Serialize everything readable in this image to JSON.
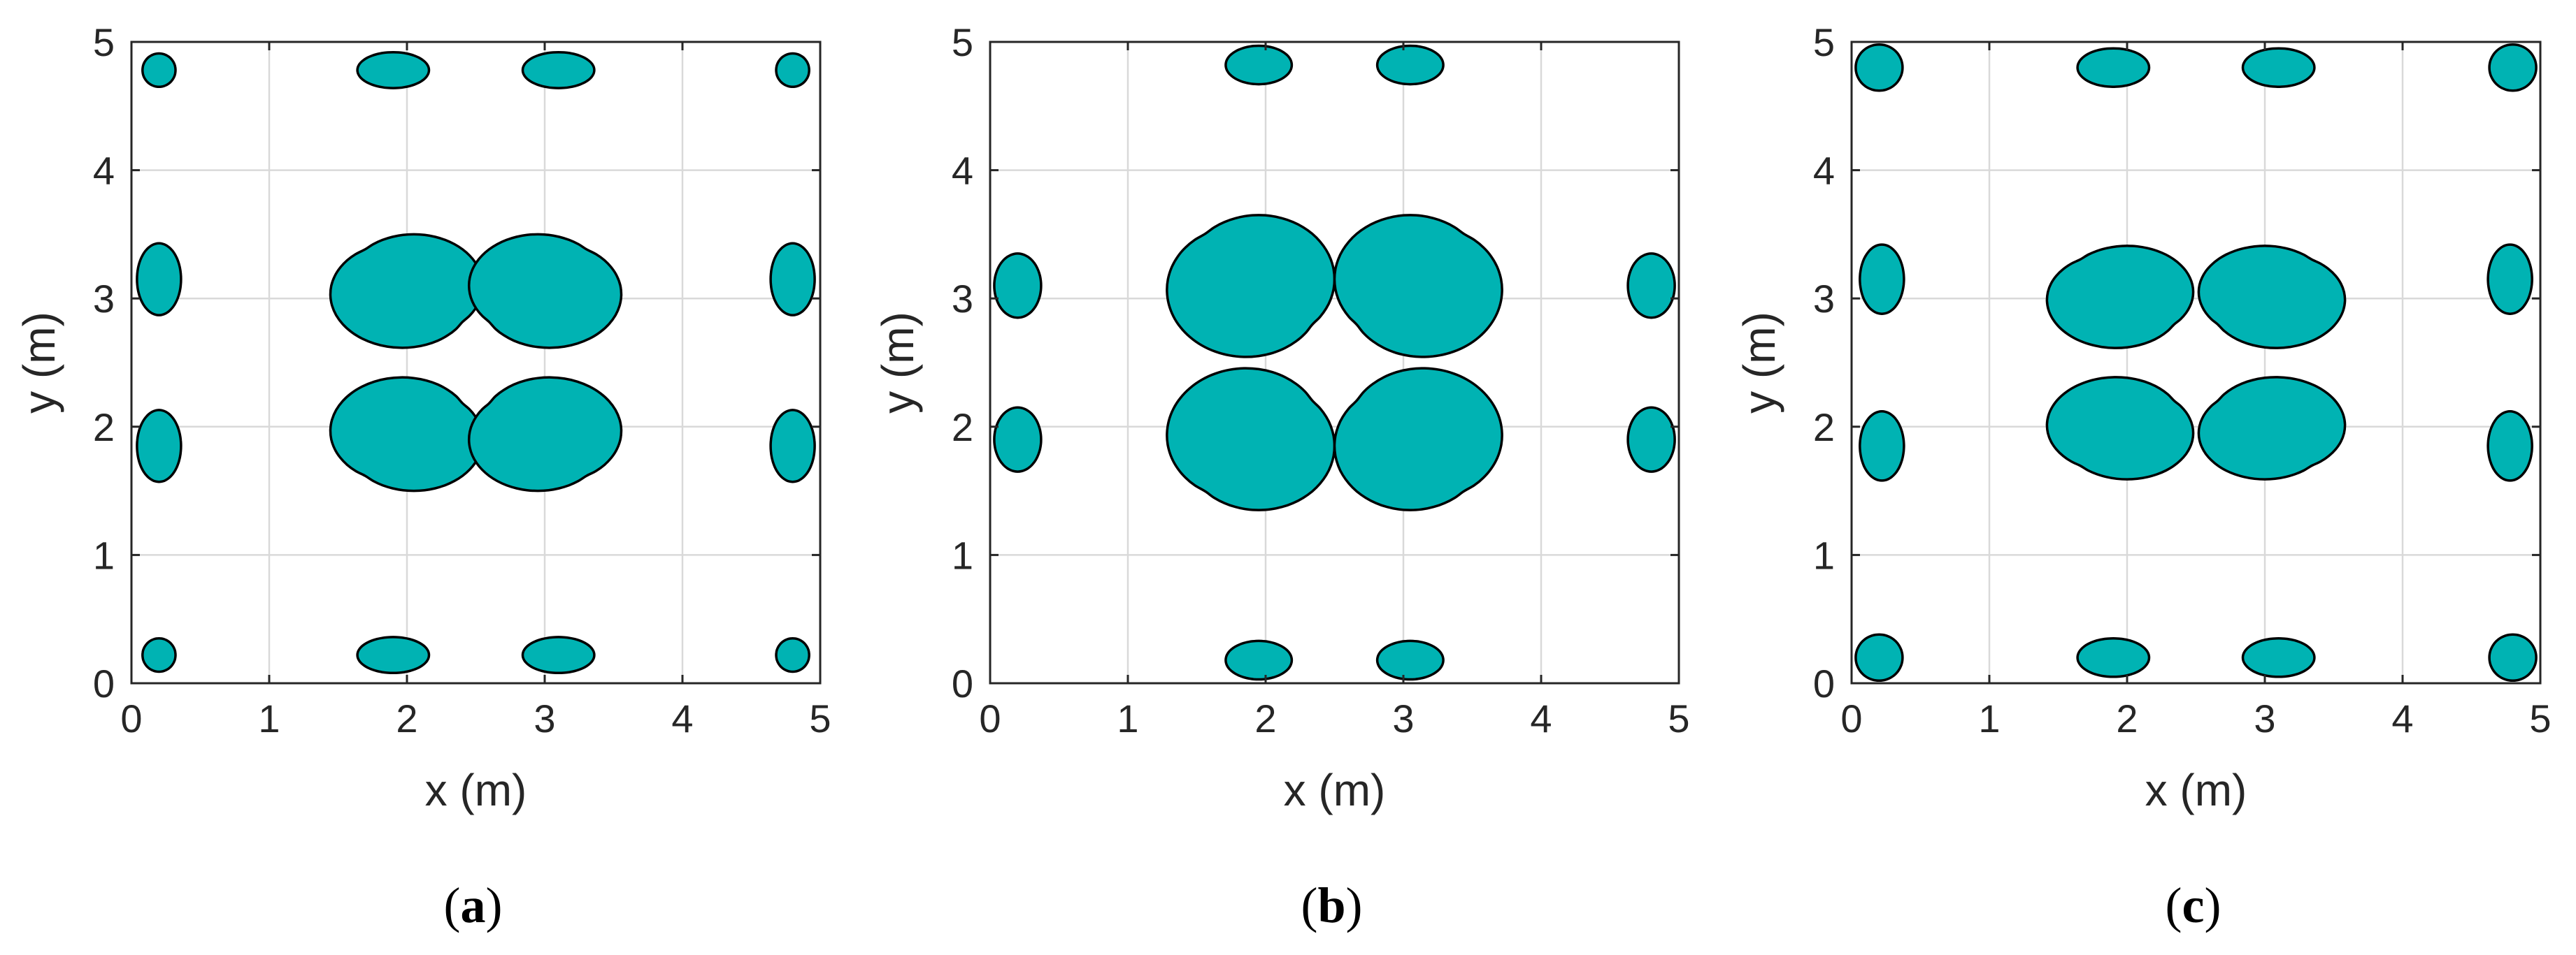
{
  "chart_data": [
    {
      "type": "contour",
      "panel_label": "a",
      "xlabel": "x (m)",
      "ylabel": "y (m)",
      "xlim": [
        0,
        5
      ],
      "ylim": [
        0,
        5
      ],
      "xticks": [
        "0",
        "1",
        "2",
        "3",
        "4",
        "5"
      ],
      "yticks": [
        "0",
        "1",
        "2",
        "3",
        "4",
        "5"
      ],
      "grid": true,
      "fill_color": "#00b3b3",
      "regions": [
        {
          "cx": 2.05,
          "cy": 3.1,
          "rx": 0.5,
          "ry": 0.4,
          "skew": "down-left"
        },
        {
          "cx": 2.95,
          "cy": 3.1,
          "rx": 0.5,
          "ry": 0.4,
          "skew": "down-right"
        },
        {
          "cx": 2.05,
          "cy": 1.9,
          "rx": 0.5,
          "ry": 0.4,
          "skew": "up-left"
        },
        {
          "cx": 2.95,
          "cy": 1.9,
          "rx": 0.5,
          "ry": 0.4,
          "skew": "up-right"
        },
        {
          "cx": 0.2,
          "cy": 3.15,
          "rx": 0.16,
          "ry": 0.28
        },
        {
          "cx": 0.2,
          "cy": 1.85,
          "rx": 0.16,
          "ry": 0.28
        },
        {
          "cx": 4.8,
          "cy": 3.15,
          "rx": 0.16,
          "ry": 0.28
        },
        {
          "cx": 4.8,
          "cy": 1.85,
          "rx": 0.16,
          "ry": 0.28
        },
        {
          "cx": 1.9,
          "cy": 4.78,
          "rx": 0.26,
          "ry": 0.14
        },
        {
          "cx": 3.1,
          "cy": 4.78,
          "rx": 0.26,
          "ry": 0.14
        },
        {
          "cx": 1.9,
          "cy": 0.22,
          "rx": 0.26,
          "ry": 0.14
        },
        {
          "cx": 3.1,
          "cy": 0.22,
          "rx": 0.26,
          "ry": 0.14
        },
        {
          "cx": 0.2,
          "cy": 4.78,
          "rx": 0.12,
          "ry": 0.13
        },
        {
          "cx": 4.8,
          "cy": 4.78,
          "rx": 0.12,
          "ry": 0.13
        },
        {
          "cx": 0.2,
          "cy": 0.22,
          "rx": 0.12,
          "ry": 0.13
        },
        {
          "cx": 4.8,
          "cy": 0.22,
          "rx": 0.12,
          "ry": 0.13
        }
      ]
    },
    {
      "type": "contour",
      "panel_label": "b",
      "xlabel": "x (m)",
      "ylabel": "y (m)",
      "xlim": [
        0,
        5
      ],
      "ylim": [
        0,
        5
      ],
      "xticks": [
        "0",
        "1",
        "2",
        "3",
        "4",
        "5"
      ],
      "yticks": [
        "0",
        "1",
        "2",
        "3",
        "4",
        "5"
      ],
      "grid": true,
      "fill_color": "#00b3b3",
      "regions": [
        {
          "cx": 1.95,
          "cy": 3.15,
          "rx": 0.55,
          "ry": 0.5,
          "skew": "down-left"
        },
        {
          "cx": 3.05,
          "cy": 3.15,
          "rx": 0.55,
          "ry": 0.5,
          "skew": "down-right"
        },
        {
          "cx": 1.95,
          "cy": 1.85,
          "rx": 0.55,
          "ry": 0.5,
          "skew": "up-left"
        },
        {
          "cx": 3.05,
          "cy": 1.85,
          "rx": 0.55,
          "ry": 0.5,
          "skew": "up-right"
        },
        {
          "cx": 0.2,
          "cy": 3.1,
          "rx": 0.17,
          "ry": 0.25
        },
        {
          "cx": 0.2,
          "cy": 1.9,
          "rx": 0.17,
          "ry": 0.25
        },
        {
          "cx": 4.8,
          "cy": 3.1,
          "rx": 0.17,
          "ry": 0.25
        },
        {
          "cx": 4.8,
          "cy": 1.9,
          "rx": 0.17,
          "ry": 0.25
        },
        {
          "cx": 1.95,
          "cy": 4.82,
          "rx": 0.24,
          "ry": 0.15
        },
        {
          "cx": 3.05,
          "cy": 4.82,
          "rx": 0.24,
          "ry": 0.15
        },
        {
          "cx": 1.95,
          "cy": 0.18,
          "rx": 0.24,
          "ry": 0.15
        },
        {
          "cx": 3.05,
          "cy": 0.18,
          "rx": 0.24,
          "ry": 0.15
        }
      ]
    },
    {
      "type": "contour",
      "panel_label": "c",
      "xlabel": "x (m)",
      "ylabel": "y (m)",
      "xlim": [
        0,
        5
      ],
      "ylim": [
        0,
        5
      ],
      "xticks": [
        "0",
        "1",
        "2",
        "3",
        "4",
        "5"
      ],
      "yticks": [
        "0",
        "1",
        "2",
        "3",
        "4",
        "5"
      ],
      "grid": true,
      "fill_color": "#00b3b3",
      "regions": [
        {
          "cx": 2.0,
          "cy": 3.05,
          "rx": 0.48,
          "ry": 0.36,
          "skew": "down-left"
        },
        {
          "cx": 3.0,
          "cy": 3.05,
          "rx": 0.48,
          "ry": 0.36,
          "skew": "down-right"
        },
        {
          "cx": 2.0,
          "cy": 1.95,
          "rx": 0.48,
          "ry": 0.36,
          "skew": "up-left"
        },
        {
          "cx": 3.0,
          "cy": 1.95,
          "rx": 0.48,
          "ry": 0.36,
          "skew": "up-right"
        },
        {
          "cx": 0.22,
          "cy": 3.15,
          "rx": 0.16,
          "ry": 0.27
        },
        {
          "cx": 0.22,
          "cy": 1.85,
          "rx": 0.16,
          "ry": 0.27
        },
        {
          "cx": 4.78,
          "cy": 3.15,
          "rx": 0.16,
          "ry": 0.27
        },
        {
          "cx": 4.78,
          "cy": 1.85,
          "rx": 0.16,
          "ry": 0.27
        },
        {
          "cx": 1.9,
          "cy": 4.8,
          "rx": 0.26,
          "ry": 0.15
        },
        {
          "cx": 3.1,
          "cy": 4.8,
          "rx": 0.26,
          "ry": 0.15
        },
        {
          "cx": 1.9,
          "cy": 0.2,
          "rx": 0.26,
          "ry": 0.15
        },
        {
          "cx": 3.1,
          "cy": 0.2,
          "rx": 0.26,
          "ry": 0.15
        },
        {
          "cx": 0.2,
          "cy": 4.8,
          "rx": 0.17,
          "ry": 0.18
        },
        {
          "cx": 4.8,
          "cy": 4.8,
          "rx": 0.17,
          "ry": 0.18
        },
        {
          "cx": 0.2,
          "cy": 0.2,
          "rx": 0.17,
          "ry": 0.18
        },
        {
          "cx": 4.8,
          "cy": 0.2,
          "rx": 0.17,
          "ry": 0.18
        }
      ]
    }
  ]
}
